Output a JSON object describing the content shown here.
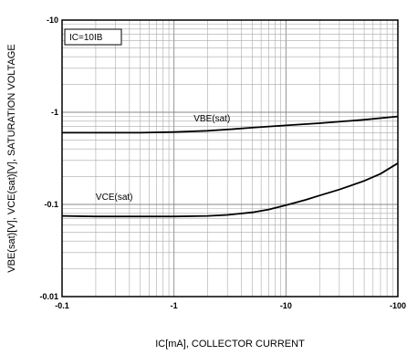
{
  "chart_data": {
    "type": "line",
    "xlabel": "IC[mA], COLLECTOR CURRENT",
    "ylabel": "VBE(sat)[V], VCE(sat)[V], SATURATION VOLTAGE",
    "x_scale": "log",
    "y_scale": "log",
    "xlim": [
      -0.1,
      -100
    ],
    "ylim": [
      -0.01,
      -10
    ],
    "x_ticks": [
      "-0.1",
      "-1",
      "-10",
      "-100"
    ],
    "y_ticks": [
      "-10",
      "-1",
      "-0.1",
      "-0.01"
    ],
    "grid": true,
    "condition_label": "IC=10IB",
    "series": [
      {
        "name": "VBE(sat)",
        "x": [
          -0.1,
          -0.2,
          -0.5,
          -1,
          -2,
          -3,
          -5,
          -10,
          -20,
          -50,
          -100
        ],
        "y": [
          -0.6,
          -0.6,
          -0.6,
          -0.61,
          -0.63,
          -0.65,
          -0.68,
          -0.72,
          -0.76,
          -0.83,
          -0.9
        ]
      },
      {
        "name": "VCE(sat)",
        "x": [
          -0.1,
          -0.2,
          -0.5,
          -1,
          -2,
          -3,
          -5,
          -7,
          -10,
          -15,
          -20,
          -30,
          -50,
          -70,
          -100
        ],
        "y": [
          -0.075,
          -0.074,
          -0.074,
          -0.074,
          -0.075,
          -0.077,
          -0.082,
          -0.088,
          -0.098,
          -0.112,
          -0.125,
          -0.145,
          -0.18,
          -0.215,
          -0.28
        ]
      }
    ]
  }
}
